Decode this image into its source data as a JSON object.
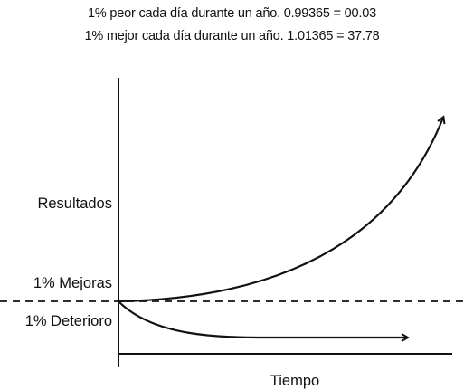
{
  "header": {
    "worse_line": "1% peor cada día durante un año.  0.99365 = 00.03",
    "better_line": "1% mejor cada día durante un año.   1.01365 = 37.78"
  },
  "diagram": {
    "y_label": "Resultados",
    "x_label": "Tiempo",
    "improvement_label": "1% Mejoras",
    "decline_label": "1% Deterioro"
  }
}
